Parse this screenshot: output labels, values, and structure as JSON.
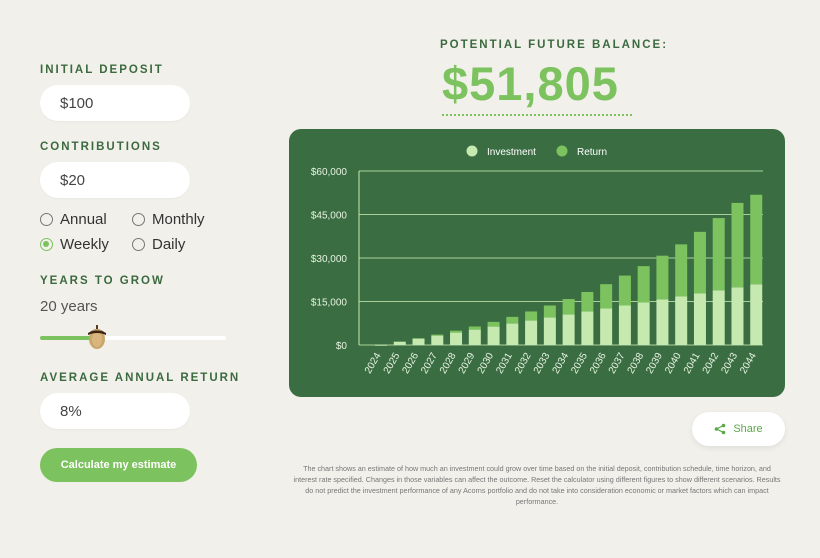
{
  "form": {
    "initial_deposit_label": "INITIAL DEPOSIT",
    "initial_deposit_value": "$100",
    "contributions_label": "CONTRIBUTIONS",
    "contributions_value": "$20",
    "frequency_options": [
      {
        "label": "Annual",
        "selected": false
      },
      {
        "label": "Monthly",
        "selected": false
      },
      {
        "label": "Weekly",
        "selected": true
      },
      {
        "label": "Daily",
        "selected": false
      }
    ],
    "years_label": "YEARS TO GROW",
    "years_value": "20 years",
    "years_slider_fraction": 0.3,
    "return_label": "AVERAGE ANNUAL RETURN",
    "return_value": "8%",
    "calculate_label": "Calculate my estimate"
  },
  "result": {
    "label": "POTENTIAL FUTURE BALANCE:",
    "value": "$51,805"
  },
  "share_label": "Share",
  "disclaimer": "The chart shows an estimate of how much an investment could grow over time based on the initial deposit, contribution schedule, time horizon, and interest rate specified.  Changes in those variables can affect the outcome.  Reset the calculator using different figures to show different scenarios.  Results do not predict the investment performance of any Acorns portfolio and do not take into consideration economic or market factors which can impact performance.",
  "colors": {
    "accent": "#7cc25e",
    "chart_bg": "#3a6e42",
    "investment": "#c6e9b0",
    "return": "#7cc25e"
  },
  "chart_data": {
    "type": "bar",
    "stacked": true,
    "categories": [
      "2024",
      "2025",
      "2026",
      "2027",
      "2028",
      "2029",
      "2030",
      "2031",
      "2032",
      "2033",
      "2034",
      "2035",
      "2036",
      "2037",
      "2038",
      "2039",
      "2040",
      "2041",
      "2042",
      "2043",
      "2044"
    ],
    "series": [
      {
        "name": "Investment",
        "values": [
          100,
          1140,
          2180,
          3220,
          4260,
          5300,
          6340,
          7380,
          8420,
          9460,
          10500,
          11540,
          12580,
          13620,
          14660,
          15700,
          16740,
          17780,
          18820,
          19860,
          20900
        ]
      },
      {
        "name": "Return",
        "values": [
          0,
          40,
          160,
          370,
          680,
          1090,
          1630,
          2320,
          3150,
          4160,
          5350,
          6750,
          8400,
          10320,
          12530,
          15100,
          17970,
          21240,
          24950,
          29140,
          30905
        ]
      }
    ],
    "yticks": [
      "$0",
      "$15,000",
      "$30,000",
      "$45,000",
      "$60,000"
    ],
    "ylim": [
      0,
      60000
    ],
    "legend_position": "top-center",
    "grid": true
  }
}
